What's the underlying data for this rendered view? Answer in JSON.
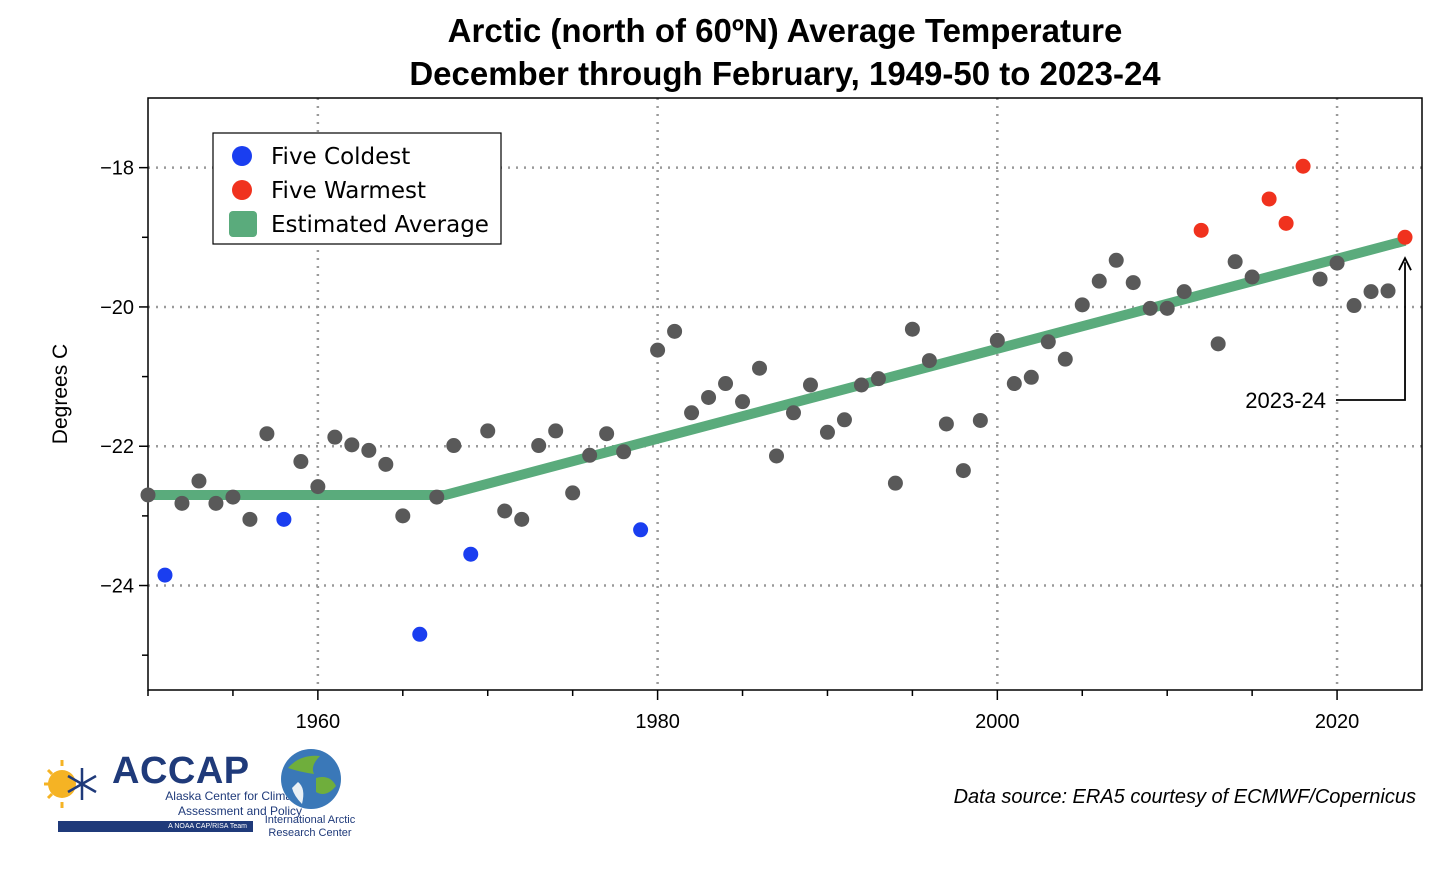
{
  "title_line1": "Arctic (north of 60ºN) Average Temperature",
  "title_line2": "December through February, 1949-50 to 2023-24",
  "source_note": "Data source: ERA5 courtesy of ECMWF/Copernicus",
  "logos": {
    "accap_name": "ACCAP",
    "accap_subtitle": "Alaska Center for Climate Assessment and Policy",
    "accap_tagline": "A NOAA CAP/RISA Team",
    "iarc_name": "International Arctic Research Center"
  },
  "colors": {
    "normal_point": "#595959",
    "coldest_point": "#1a3ef0",
    "warmest_point": "#f0321e",
    "trend_line": "#5aab7c"
  },
  "chart_data": {
    "type": "scatter",
    "ylabel": "Degrees C",
    "xlim": [
      1950,
      2025
    ],
    "ylim": [
      -25.5,
      -17
    ],
    "xticks": [
      1960,
      1980,
      2000,
      2020
    ],
    "yticks": [
      -24,
      -22,
      -20,
      -18
    ],
    "grid": true,
    "legend_position": "top-left",
    "legend": [
      "Five Coldest",
      "Five Warmest",
      "Estimated Average"
    ],
    "annotation": {
      "text": "2023-24",
      "x": 2024,
      "y": -19.3
    },
    "series": [
      {
        "name": "Five Coldest",
        "points": [
          [
            1951,
            -23.85
          ],
          [
            1958,
            -23.05
          ],
          [
            1966,
            -24.7
          ],
          [
            1969,
            -23.55
          ],
          [
            1979,
            -23.2
          ]
        ]
      },
      {
        "name": "Five Warmest",
        "points": [
          [
            2012,
            -18.9
          ],
          [
            2016,
            -18.45
          ],
          [
            2017,
            -18.8
          ],
          [
            2018,
            -17.98
          ],
          [
            2024,
            -19.0
          ]
        ]
      },
      {
        "name": "",
        "points": [
          [
            1950,
            -22.7
          ],
          [
            1952,
            -22.82
          ],
          [
            1953,
            -22.5
          ],
          [
            1954,
            -22.82
          ],
          [
            1955,
            -22.73
          ],
          [
            1956,
            -23.05
          ],
          [
            1957,
            -21.82
          ],
          [
            1959,
            -22.22
          ],
          [
            1960,
            -22.58
          ],
          [
            1961,
            -21.87
          ],
          [
            1962,
            -21.98
          ],
          [
            1963,
            -22.06
          ],
          [
            1964,
            -22.26
          ],
          [
            1965,
            -23.0
          ],
          [
            1967,
            -22.73
          ],
          [
            1968,
            -21.99
          ],
          [
            1970,
            -21.78
          ],
          [
            1971,
            -22.93
          ],
          [
            1972,
            -23.05
          ],
          [
            1973,
            -21.99
          ],
          [
            1974,
            -21.78
          ],
          [
            1975,
            -22.67
          ],
          [
            1976,
            -22.13
          ],
          [
            1977,
            -21.82
          ],
          [
            1978,
            -22.08
          ],
          [
            1980,
            -20.62
          ],
          [
            1981,
            -20.35
          ],
          [
            1982,
            -21.52
          ],
          [
            1983,
            -21.3
          ],
          [
            1984,
            -21.1
          ],
          [
            1985,
            -21.36
          ],
          [
            1986,
            -20.88
          ],
          [
            1987,
            -22.14
          ],
          [
            1988,
            -21.52
          ],
          [
            1989,
            -21.12
          ],
          [
            1990,
            -21.8
          ],
          [
            1991,
            -21.62
          ],
          [
            1992,
            -21.12
          ],
          [
            1993,
            -21.03
          ],
          [
            1994,
            -22.53
          ],
          [
            1995,
            -20.32
          ],
          [
            1996,
            -20.77
          ],
          [
            1997,
            -21.68
          ],
          [
            1998,
            -22.35
          ],
          [
            1999,
            -21.63
          ],
          [
            2000,
            -20.48
          ],
          [
            2001,
            -21.1
          ],
          [
            2002,
            -21.01
          ],
          [
            2003,
            -20.5
          ],
          [
            2004,
            -20.75
          ],
          [
            2005,
            -19.97
          ],
          [
            2006,
            -19.63
          ],
          [
            2007,
            -19.33
          ],
          [
            2008,
            -19.65
          ],
          [
            2009,
            -20.02
          ],
          [
            2010,
            -20.02
          ],
          [
            2011,
            -19.78
          ],
          [
            2013,
            -20.53
          ],
          [
            2014,
            -19.35
          ],
          [
            2015,
            -19.57
          ],
          [
            2019,
            -19.6
          ],
          [
            2020,
            -19.37
          ],
          [
            2021,
            -19.98
          ],
          [
            2022,
            -19.78
          ],
          [
            2023,
            -19.77
          ]
        ]
      },
      {
        "name": "Estimated Average",
        "type": "line",
        "points": [
          [
            1950,
            -22.7
          ],
          [
            1967.5,
            -22.7
          ],
          [
            2024,
            -19.05
          ]
        ]
      }
    ]
  }
}
